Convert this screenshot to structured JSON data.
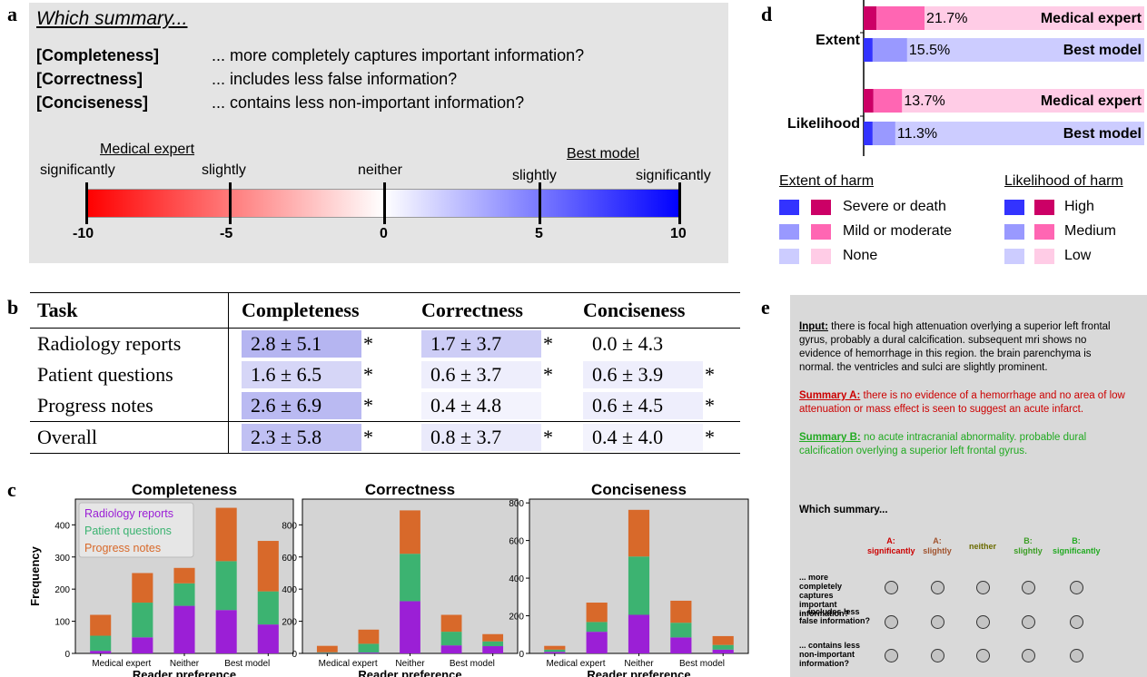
{
  "panel_labels": {
    "a": "a",
    "b": "b",
    "c": "c",
    "d": "d",
    "e": "e"
  },
  "panel_a": {
    "title": "Which summary...",
    "criteria": [
      {
        "name": "[Completeness]",
        "question": "... more completely captures important information?"
      },
      {
        "name": "[Correctness]",
        "question": "... includes less false information?"
      },
      {
        "name": "[Conciseness]",
        "question": "... contains less non-important information?"
      }
    ],
    "left_label": "Medical expert",
    "right_label": "Best model",
    "scale_words": [
      "significantly",
      "slightly",
      "neither",
      "slightly",
      "significantly"
    ],
    "ticks": [
      "-10",
      "-5",
      "0",
      "5",
      "10"
    ],
    "colors": {
      "left": "#ff0000",
      "mid": "#ffffff",
      "right": "#0000ff"
    }
  },
  "panel_b": {
    "headers": [
      "Task",
      "Completeness",
      "Correctness",
      "Conciseness"
    ],
    "rows": [
      {
        "task": "Radiology reports",
        "cells": [
          {
            "v": "2.8 ± 5.1",
            "sig": "*",
            "shade": 0.45
          },
          {
            "v": "1.7 ± 3.7",
            "sig": "*",
            "shade": 0.3
          },
          {
            "v": "0.0 ± 4.3",
            "sig": "",
            "shade": 0
          }
        ]
      },
      {
        "task": "Patient questions",
        "cells": [
          {
            "v": "1.6 ± 6.5",
            "sig": "*",
            "shade": 0.25
          },
          {
            "v": "0.6 ± 3.7",
            "sig": "*",
            "shade": 0.1
          },
          {
            "v": "0.6 ± 3.9",
            "sig": "*",
            "shade": 0.1
          }
        ]
      },
      {
        "task": "Progress notes",
        "cells": [
          {
            "v": "2.6 ± 6.9",
            "sig": "*",
            "shade": 0.42
          },
          {
            "v": "0.4 ± 4.8",
            "sig": "",
            "shade": 0.07
          },
          {
            "v": "0.6 ± 4.5",
            "sig": "*",
            "shade": 0.1
          }
        ]
      },
      {
        "task": "Overall",
        "cells": [
          {
            "v": "2.3 ± 5.8",
            "sig": "*",
            "shade": 0.38
          },
          {
            "v": "0.8 ± 3.7",
            "sig": "*",
            "shade": 0.13
          },
          {
            "v": "0.4 ± 4.0",
            "sig": "*",
            "shade": 0.07
          }
        ]
      }
    ],
    "shade_color": "#5a5ae0"
  },
  "chart_data": [
    {
      "type": "bar",
      "stacked": true,
      "title": "Completeness",
      "xlabel": "Reader preference",
      "ylabel": "Frequency",
      "categories": [
        "Medical expert",
        "Medical expert",
        "Neither",
        "Best model",
        "Best model"
      ],
      "xtick_labels": [
        "Medical expert",
        "Neither",
        "Best model"
      ],
      "ylim": [
        0,
        480
      ],
      "yticks": [
        0,
        100,
        200,
        300,
        400
      ],
      "series": [
        {
          "name": "Radiology reports",
          "color": "#9b1fd6",
          "values": [
            8,
            50,
            148,
            135,
            90
          ]
        },
        {
          "name": "Patient questions",
          "color": "#3cb371",
          "values": [
            47,
            108,
            70,
            152,
            103
          ]
        },
        {
          "name": "Progress notes",
          "color": "#d8692a",
          "values": [
            65,
            92,
            48,
            166,
            157
          ]
        }
      ],
      "legend": "top-left"
    },
    {
      "type": "bar",
      "stacked": true,
      "title": "Correctness",
      "xlabel": "Reader preference",
      "ylabel": "",
      "categories": [
        "Medical expert",
        "Medical expert",
        "Neither",
        "Best model",
        "Best model"
      ],
      "xtick_labels": [
        "Medical expert",
        "Neither",
        "Best model"
      ],
      "ylim": [
        0,
        960
      ],
      "yticks": [
        0,
        200,
        400,
        600,
        800
      ],
      "series": [
        {
          "name": "Radiology reports",
          "color": "#9b1fd6",
          "values": [
            2,
            5,
            325,
            50,
            45
          ]
        },
        {
          "name": "Patient questions",
          "color": "#3cb371",
          "values": [
            5,
            55,
            295,
            85,
            30
          ]
        },
        {
          "name": "Progress notes",
          "color": "#d8692a",
          "values": [
            40,
            88,
            270,
            105,
            45
          ]
        }
      ]
    },
    {
      "type": "bar",
      "stacked": true,
      "title": "Conciseness",
      "xlabel": "Reader preference",
      "ylabel": "",
      "categories": [
        "Medical expert",
        "Medical expert",
        "Neither",
        "Best model",
        "Best model"
      ],
      "xtick_labels": [
        "Medical expert",
        "Neither",
        "Best model"
      ],
      "ylim": [
        0,
        820
      ],
      "yticks": [
        0,
        200,
        400,
        600,
        800
      ],
      "series": [
        {
          "name": "Radiology reports",
          "color": "#9b1fd6",
          "values": [
            8,
            115,
            205,
            85,
            20
          ]
        },
        {
          "name": "Patient questions",
          "color": "#3cb371",
          "values": [
            12,
            52,
            310,
            78,
            25
          ]
        },
        {
          "name": "Progress notes",
          "color": "#d8692a",
          "values": [
            20,
            103,
            248,
            117,
            47
          ]
        }
      ]
    },
    {
      "type": "bar",
      "stacked": true,
      "orientation": "horizontal",
      "groups": [
        "Extent",
        "Likelihood"
      ],
      "rows": [
        {
          "group": "Extent",
          "label": "Medical expert",
          "annotation": "21.7%",
          "segments": [
            {
              "name": "Severe or death",
              "value": 4.6,
              "color": "#cc0066"
            },
            {
              "name": "Mild or moderate",
              "value": 17.1,
              "color": "#ff66b3"
            },
            {
              "name": "None",
              "value": 78.3,
              "color": "#ffcce6"
            }
          ]
        },
        {
          "group": "Extent",
          "label": "Best model",
          "annotation": "15.5%",
          "segments": [
            {
              "name": "Severe or death",
              "value": 3.2,
              "color": "#3333ff"
            },
            {
              "name": "Mild or moderate",
              "value": 12.3,
              "color": "#9999ff"
            },
            {
              "name": "None",
              "value": 84.5,
              "color": "#ccccff"
            }
          ]
        },
        {
          "group": "Likelihood",
          "label": "Medical expert",
          "annotation": "13.7%",
          "segments": [
            {
              "name": "High",
              "value": 3.5,
              "color": "#cc0066"
            },
            {
              "name": "Medium",
              "value": 10.2,
              "color": "#ff66b3"
            },
            {
              "name": "Low",
              "value": 86.3,
              "color": "#ffcce6"
            }
          ]
        },
        {
          "group": "Likelihood",
          "label": "Best model",
          "annotation": "11.3%",
          "segments": [
            {
              "name": "High",
              "value": 3.2,
              "color": "#3333ff"
            },
            {
              "name": "Medium",
              "value": 8.1,
              "color": "#9999ff"
            },
            {
              "name": "Low",
              "value": 88.7,
              "color": "#ccccff"
            }
          ]
        }
      ]
    }
  ],
  "panel_d": {
    "legend_extent_title": "Extent of harm",
    "legend_extent_items": [
      "Severe or death",
      "Mild or moderate",
      "None"
    ],
    "legend_likelihood_title": "Likelihood of harm",
    "legend_likelihood_items": [
      "High",
      "Medium",
      "Low"
    ],
    "blue_colors": [
      "#3333ff",
      "#9999ff",
      "#ccccff"
    ],
    "pink_colors": [
      "#cc0066",
      "#ff66b3",
      "#ffcce6"
    ]
  },
  "panel_e": {
    "input_label": "Input:",
    "input_text": " there is focal high attenuation overlying a superior left frontal gyrus, probably a dural calcification. subsequent mri shows no evidence of hemorrhage in this region. the brain parenchyma is normal. the ventricles and sulci are slightly prominent.",
    "summary_a_label": "Summary A:",
    "summary_a_text": " there is no evidence of a hemorrhage and no area of low attenuation or mass effect is seen to suggest an acute infarct.",
    "summary_b_label": "Summary B:",
    "summary_b_text": " no acute intracranial abnormality. probable dural calcification overlying a superior left frontal gyrus.",
    "prompt": "Which summary...",
    "options": [
      {
        "line1": "A:",
        "line2": "significantly",
        "color": "#cc0000"
      },
      {
        "line1": "A:",
        "line2": "slightly",
        "color": "#a0522d"
      },
      {
        "line1": "",
        "line2": "neither",
        "color": "#6b6b00"
      },
      {
        "line1": "B:",
        "line2": "slightly",
        "color": "#3a9d23"
      },
      {
        "line1": "B:",
        "line2": "significantly",
        "color": "#22aa22"
      }
    ],
    "questions": [
      "... more completely captures important information?",
      "... includes less false information?",
      "... contains less non-important information?"
    ]
  }
}
